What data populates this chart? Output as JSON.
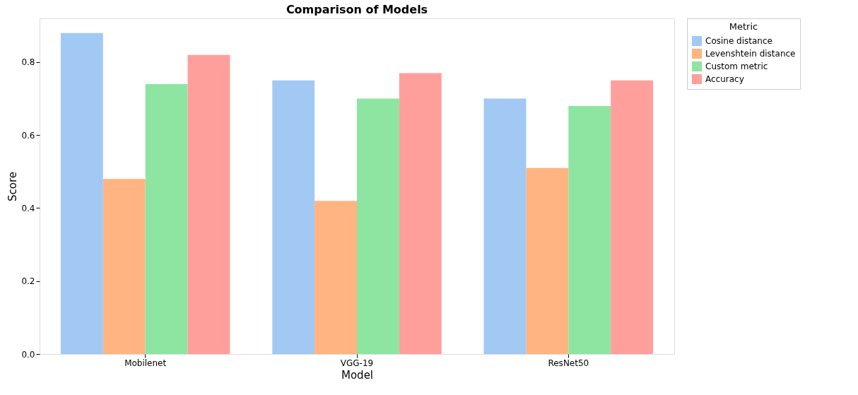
{
  "chart_data": {
    "type": "bar",
    "title": "Comparison of Models",
    "xlabel": "Model",
    "ylabel": "Score",
    "legend_title": "Metric",
    "categories": [
      "Mobilenet",
      "VGG-19",
      "ResNet50"
    ],
    "series": [
      {
        "name": "Cosine distance",
        "color": "#a1c9f4",
        "values": [
          0.88,
          0.75,
          0.7
        ]
      },
      {
        "name": "Levenshtein distance",
        "color": "#ffb482",
        "values": [
          0.48,
          0.42,
          0.51
        ]
      },
      {
        "name": "Custom metric",
        "color": "#8de5a1",
        "values": [
          0.74,
          0.7,
          0.68
        ]
      },
      {
        "name": "Accuracy",
        "color": "#ff9f9b",
        "values": [
          0.82,
          0.77,
          0.75
        ]
      }
    ],
    "ylim": [
      0,
      0.92
    ],
    "yticks": [
      {
        "value": 0,
        "label": "0.0"
      },
      0.2,
      0.4,
      0.6,
      0.8
    ],
    "grid": false,
    "legend": "top right"
  }
}
